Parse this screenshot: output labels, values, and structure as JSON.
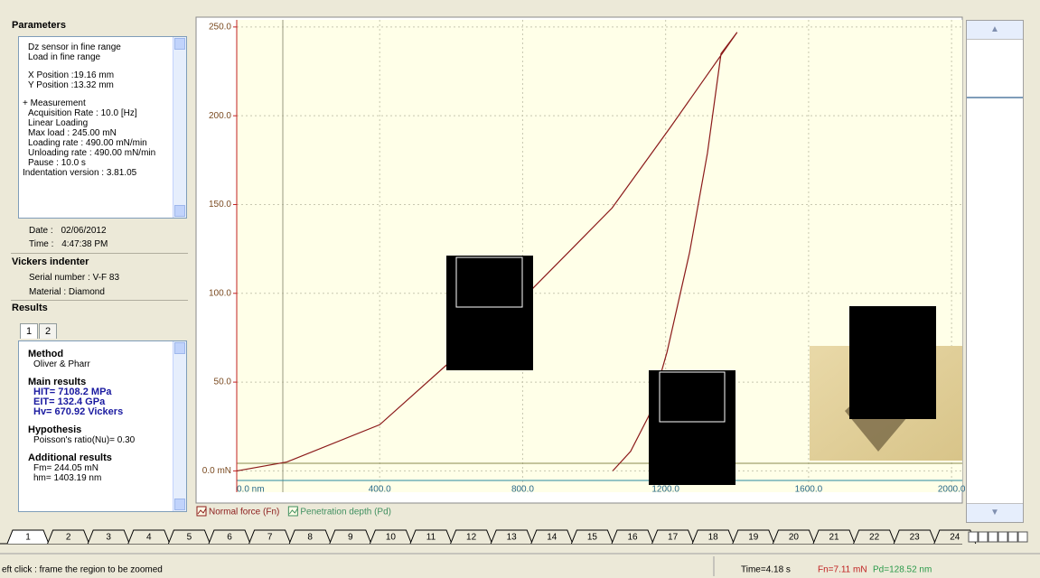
{
  "panel": {
    "parameters_title": "Parameters",
    "parameters": [
      [
        "Dz sensor in fine range",
        "Load in fine range"
      ],
      [
        "X Position :19.16 mm",
        "Y Position :13.32 mm"
      ],
      [
        "+ Measurement",
        "Acquisition Rate : 10.0 [Hz]",
        "Linear Loading",
        "Max load : 245.00  mN",
        "Loading rate : 490.00  mN/min",
        "Unloading rate : 490.00  mN/min",
        "Pause : 10.0 s",
        "Indentation version : 3.81.05"
      ]
    ],
    "date_label": "Date :",
    "date": "02/06/2012",
    "time_label": "Time :",
    "time": "4:47:38 PM",
    "indenter_title": "Vickers indenter",
    "serial": "Serial number : V-F 83",
    "material": "Material : Diamond",
    "results_title": "Results",
    "result_tabs": [
      "1",
      "2"
    ],
    "results": [
      {
        "heading": "Method",
        "lines": [
          "Oliver & Pharr"
        ],
        "emphasis": false
      },
      {
        "heading": "Main results",
        "lines": [
          "HIT= 7108.2  MPa",
          "EIT= 132.4  GPa",
          "Hv= 670.92  Vickers"
        ],
        "emphasis": true
      },
      {
        "heading": "Hypothesis",
        "lines": [
          "Poisson's ratio(Nu)= 0.30"
        ],
        "emphasis": false
      },
      {
        "heading": "Additional results",
        "lines": [
          "Fm= 244.05  mN",
          "hm= 1403.19  nm"
        ],
        "emphasis": false
      }
    ]
  },
  "chart_data": {
    "type": "line",
    "x": [
      0,
      140,
      400,
      600,
      800,
      1050,
      1215,
      1400,
      1355,
      1317,
      1267,
      1204,
      1153,
      1102,
      1052
    ],
    "series": [
      {
        "name": "Normal force (Fn)",
        "color": "#8b1a1a",
        "values": [
          0,
          5,
          26,
          62,
          97,
          148,
          194,
          247,
          235,
          179,
          123,
          67,
          31,
          11,
          0
        ]
      }
    ],
    "legend_extra": [
      {
        "name": "Penetration depth (Pd)",
        "color": "#3f8f5f"
      }
    ],
    "xlim": [
      0,
      2030
    ],
    "ylim": [
      -12,
      254
    ],
    "xticks": [
      {
        "value": 0,
        "label": "0.0 nm"
      },
      {
        "value": 400,
        "label": "400.0"
      },
      {
        "value": 800,
        "label": "800.0"
      },
      {
        "value": 1200,
        "label": "1200.0"
      },
      {
        "value": 1600,
        "label": "1600.0"
      },
      {
        "value": 2000,
        "label": "2000.0"
      }
    ],
    "yticks": [
      {
        "value": 0,
        "label": "0.0 mN"
      },
      {
        "value": 50,
        "label": "50.0"
      },
      {
        "value": 100,
        "label": "100.0"
      },
      {
        "value": 150,
        "label": "150.0"
      },
      {
        "value": 200,
        "label": "200.0"
      },
      {
        "value": 250,
        "label": "250.0"
      }
    ],
    "grid": true
  },
  "tabs": [
    "1",
    "2",
    "3",
    "4",
    "5",
    "6",
    "7",
    "8",
    "9",
    "10",
    "11",
    "12",
    "13",
    "14",
    "15",
    "16",
    "17",
    "18",
    "19",
    "20",
    "21",
    "22",
    "23",
    "24"
  ],
  "status": {
    "hint": "eft click : frame the region to be zoomed",
    "time": "Time=4.18 s",
    "fn": "Fn=7.11 mN",
    "pd": "Pd=128.52 nm"
  }
}
